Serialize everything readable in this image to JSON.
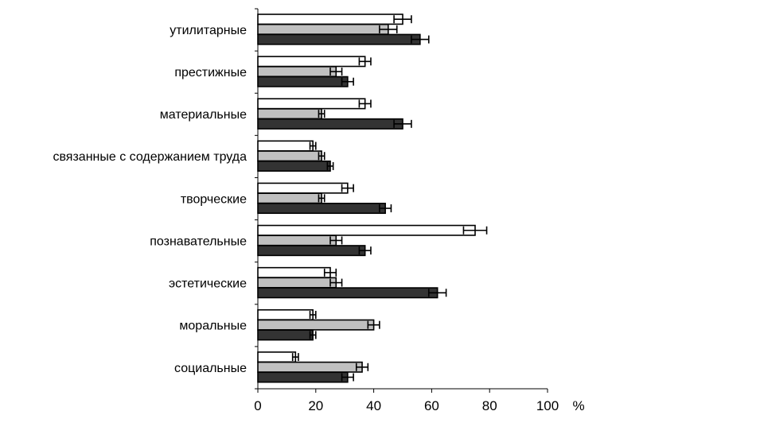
{
  "chart_data": {
    "type": "bar",
    "orientation": "horizontal",
    "categories": [
      "утилитарные",
      "престижные",
      "материальные",
      "связанные с содержанием труда",
      "творческие",
      "познавательные",
      "эстетические",
      "моральные",
      "социальные"
    ],
    "series": [
      {
        "fill": "#ffffff",
        "values": [
          50,
          37,
          37,
          19,
          31,
          75,
          25,
          19,
          13
        ],
        "errors": [
          3,
          2,
          2,
          1,
          2,
          4,
          2,
          1,
          1
        ]
      },
      {
        "fill": "#c0c0c0",
        "values": [
          45,
          27,
          22,
          22,
          22,
          27,
          27,
          40,
          36
        ],
        "errors": [
          3,
          2,
          1,
          1,
          1,
          2,
          2,
          2,
          2
        ]
      },
      {
        "fill": "#333333",
        "values": [
          56,
          31,
          50,
          25,
          44,
          37,
          62,
          19,
          31
        ],
        "errors": [
          3,
          2,
          3,
          1,
          2,
          2,
          3,
          1,
          2
        ]
      }
    ],
    "xlim": [
      0,
      100
    ],
    "xticks": [
      "0",
      "20",
      "40",
      "60",
      "80",
      "100"
    ],
    "xunit": "%",
    "grid": false,
    "legend": "none",
    "error_bars": true
  }
}
